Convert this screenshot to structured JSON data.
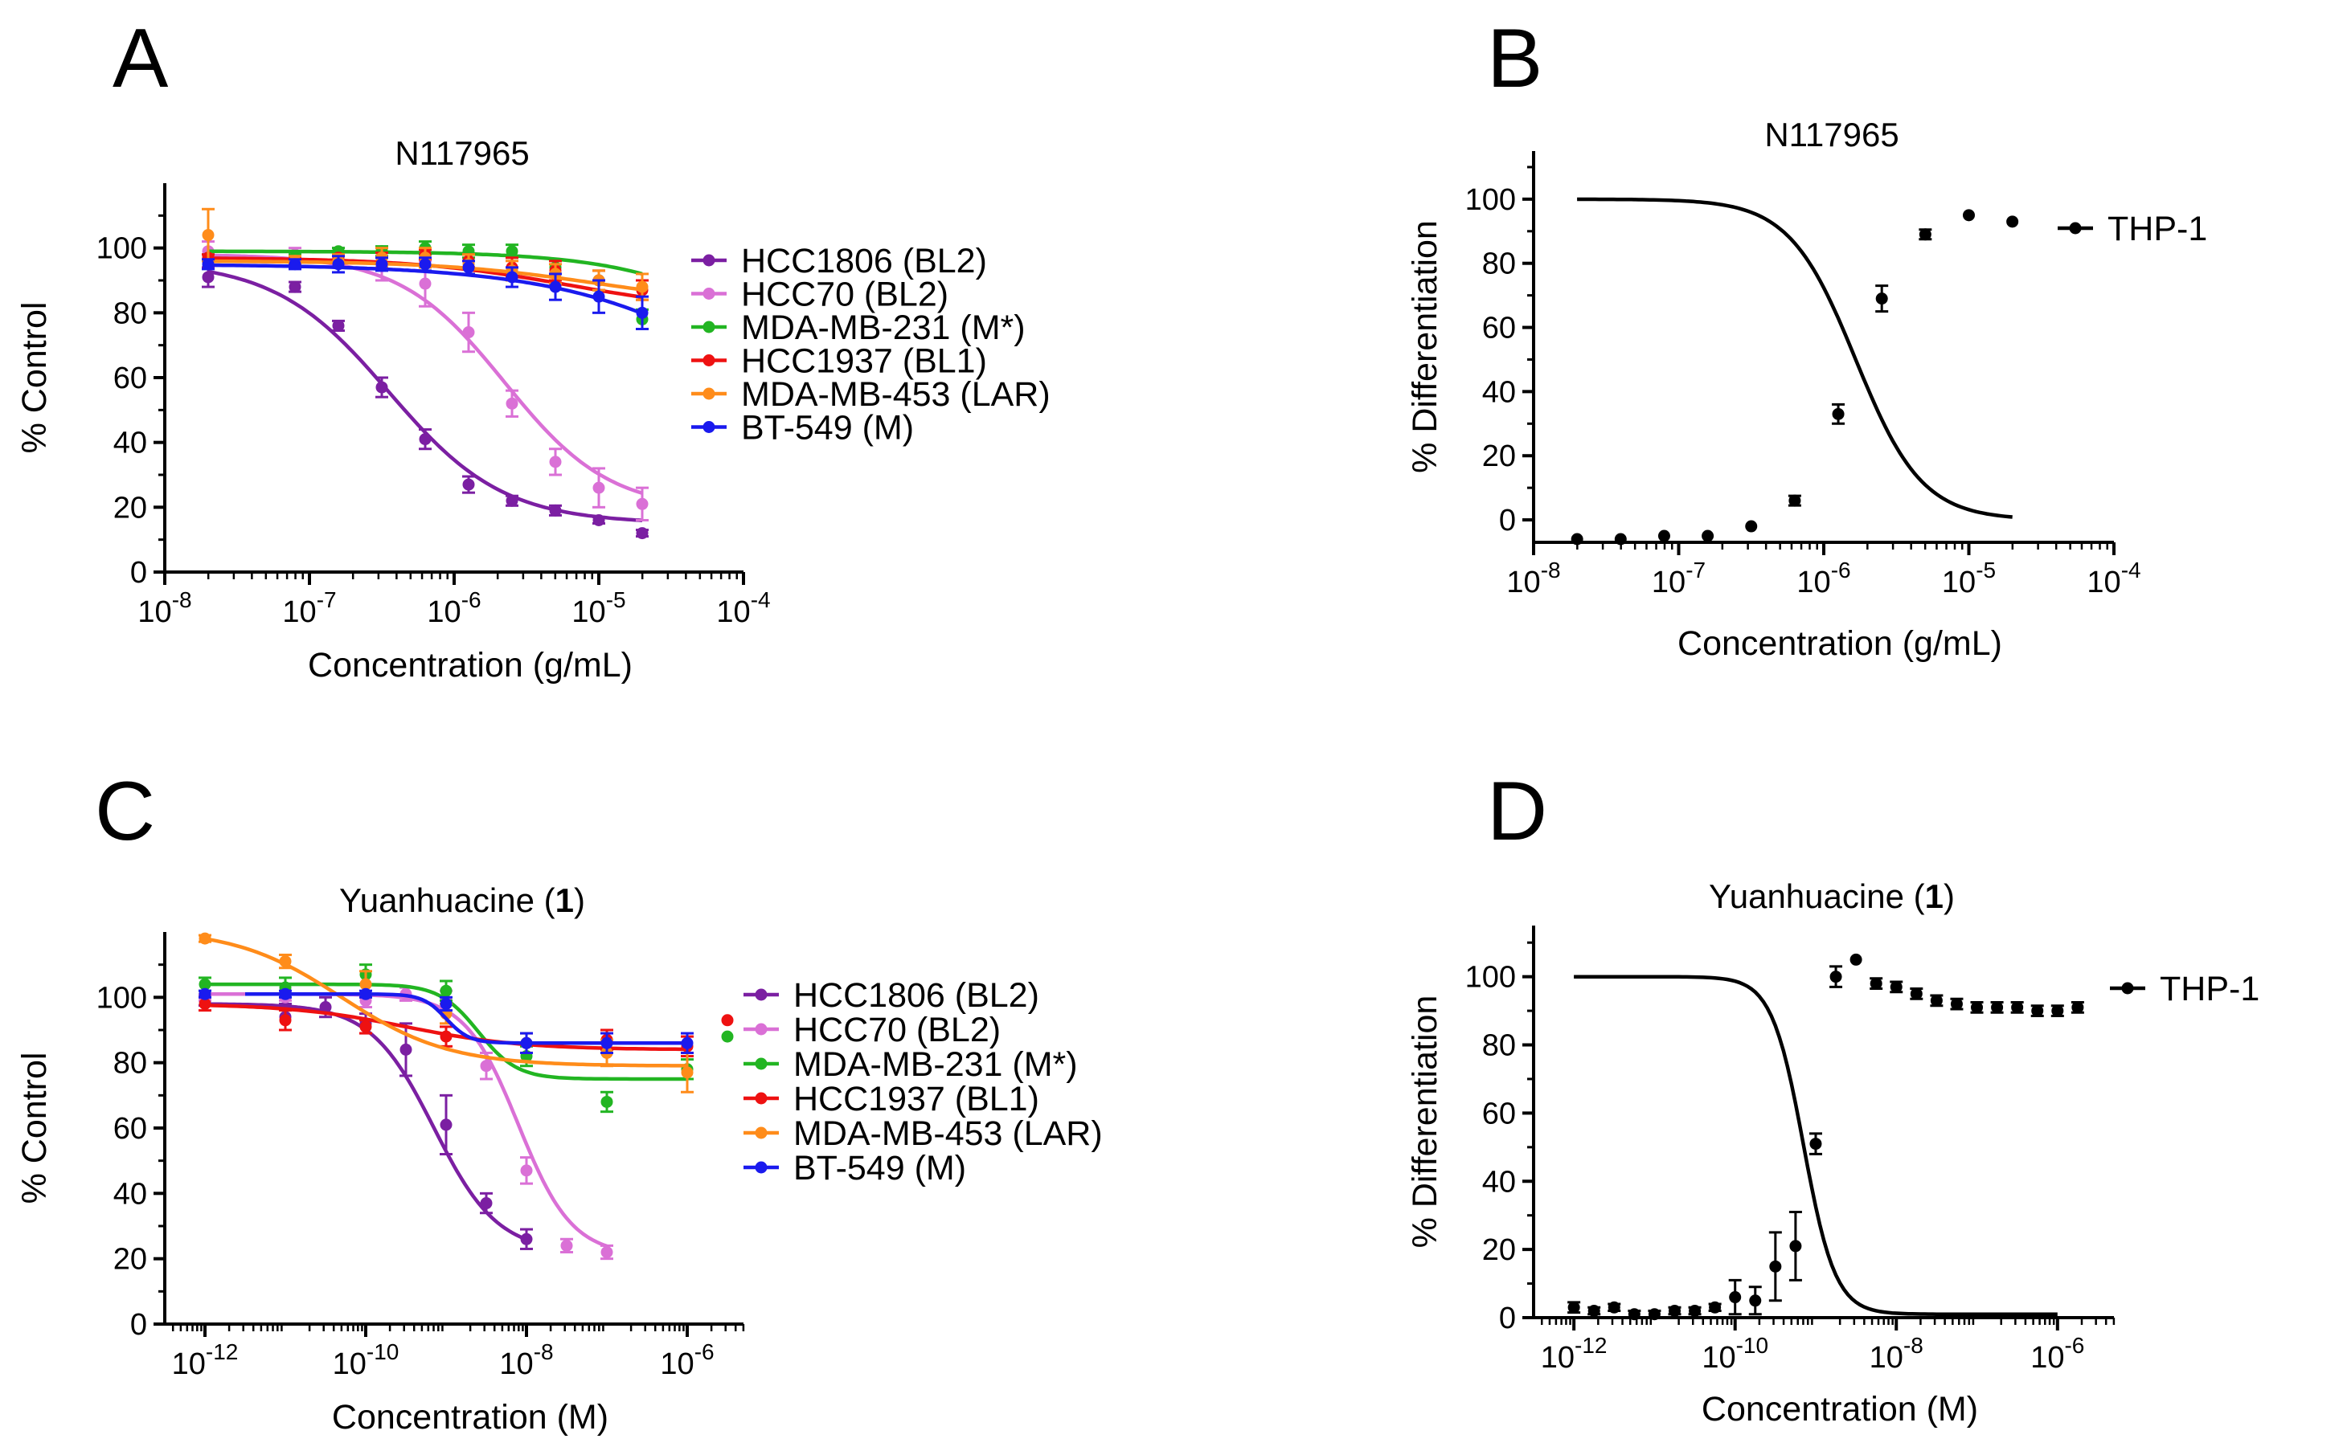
{
  "figure": {
    "colors": {
      "HCC1806 (BL2)": "#7B1FA2",
      "HCC70 (BL2)": "#DA70D6",
      "MDA-MB-231 (M*)": "#22B522",
      "HCC1937 (BL1)": "#EE1111",
      "MDA-MB-453 (LAR)": "#FF8C1A",
      "BT-549 (M)": "#1A1AEE",
      "THP-1": "#000000"
    }
  },
  "chart_data": [
    {
      "panel": "A",
      "type": "scatter",
      "title": "N117965",
      "xlabel": "Concentration (g/mL)",
      "ylabel": "% Control",
      "xscale": "log",
      "xlim_exp": [
        -8,
        -4
      ],
      "ylim": [
        0,
        120
      ],
      "xticks": [
        {
          "base": "10",
          "exp": "-8"
        },
        {
          "base": "10",
          "exp": "-7"
        },
        {
          "base": "10",
          "exp": "-6"
        },
        {
          "base": "10",
          "exp": "-5"
        },
        {
          "base": "10",
          "exp": "-4"
        }
      ],
      "yticks": [
        "0",
        "20",
        "40",
        "60",
        "80",
        "100"
      ],
      "ytick_values": [
        0,
        20,
        40,
        60,
        80,
        100
      ],
      "legend": "right",
      "series": [
        {
          "name": "HCC1806 (BL2)",
          "x_exp": [
            -7.7,
            -7.1,
            -6.8,
            -6.5,
            -6.2,
            -5.9,
            -5.6,
            -5.3,
            -5.0,
            -4.7
          ],
          "y": [
            91,
            88,
            76,
            57,
            41,
            27,
            22,
            19,
            16,
            12
          ],
          "err": [
            3,
            1.5,
            1.5,
            3,
            3,
            2.5,
            1.5,
            1.5,
            1,
            1
          ],
          "curve": {
            "top": 96,
            "bottom": 15,
            "logec50": -6.45,
            "hill": 1.1
          }
        },
        {
          "name": "HCC70 (BL2)",
          "x_exp": [
            -7.7,
            -7.1,
            -6.8,
            -6.5,
            -6.2,
            -5.9,
            -5.6,
            -5.3,
            -5.0,
            -4.7
          ],
          "y": [
            99,
            98,
            98,
            95,
            89,
            74,
            52,
            34,
            26,
            21
          ],
          "err": [
            3,
            2,
            2,
            5,
            7,
            6,
            4,
            4,
            6,
            5
          ],
          "curve": {
            "top": 98,
            "bottom": 19,
            "logec50": -5.65,
            "hill": 1.2
          }
        },
        {
          "name": "MDA-MB-231 (M*)",
          "x_exp": [
            -7.7,
            -7.1,
            -6.8,
            -6.5,
            -6.2,
            -5.9,
            -5.6,
            -5.3,
            -5.0,
            -4.7
          ],
          "y": [
            97,
            97,
            99,
            99,
            100,
            99,
            99,
            94,
            90,
            78
          ],
          "err": [
            1,
            1,
            1,
            1.5,
            2,
            2,
            2,
            2,
            3,
            3
          ],
          "curve": {
            "top": 99,
            "bottom": 0,
            "logec50": -3.3,
            "hill": 0.8
          }
        },
        {
          "name": "HCC1937 (BL1)",
          "x_exp": [
            -7.7,
            -7.1,
            -6.8,
            -6.5,
            -6.2,
            -5.9,
            -5.6,
            -5.3,
            -5.0,
            -4.7
          ],
          "y": [
            97,
            96,
            97,
            97,
            98,
            96,
            94,
            93,
            90,
            87
          ],
          "err": [
            1,
            1,
            1,
            1.5,
            1.5,
            2,
            3,
            3,
            3,
            3
          ],
          "curve": {
            "top": 97,
            "bottom": 80,
            "logec50": -5.2,
            "hill": 0.8
          }
        },
        {
          "name": "MDA-MB-453 (LAR)",
          "x_exp": [
            -7.7,
            -7.1,
            -6.8,
            -6.5,
            -6.2,
            -5.9,
            -5.6,
            -5.3,
            -5.0,
            -4.7
          ],
          "y": [
            104,
            96,
            96,
            97,
            97,
            95,
            93,
            92,
            90,
            88
          ],
          "err": [
            8,
            1.5,
            2,
            3,
            3,
            3,
            3,
            3,
            3,
            4
          ],
          "curve": {
            "top": 96,
            "bottom": 82,
            "logec50": -5.0,
            "hill": 0.8
          }
        },
        {
          "name": "BT-549 (M)",
          "x_exp": [
            -7.7,
            -7.1,
            -6.8,
            -6.5,
            -6.2,
            -5.9,
            -5.6,
            -5.3,
            -5.0,
            -4.7
          ],
          "y": [
            95,
            95,
            95,
            95,
            95,
            94,
            91,
            88,
            85,
            80
          ],
          "err": [
            1.5,
            1.5,
            2.5,
            2,
            2,
            2,
            3,
            4,
            5,
            5
          ],
          "curve": {
            "top": 95,
            "bottom": 0,
            "logec50": -3.5,
            "hill": 0.6
          }
        }
      ]
    },
    {
      "panel": "B",
      "type": "scatter",
      "title": "N117965",
      "xlabel": "Concentration (g/mL)",
      "ylabel": "% Differentiation",
      "xscale": "log",
      "xlim_exp": [
        -8,
        -4
      ],
      "ylim": [
        -7,
        115
      ],
      "xticks": [
        {
          "base": "10",
          "exp": "-8"
        },
        {
          "base": "10",
          "exp": "-7"
        },
        {
          "base": "10",
          "exp": "-6"
        },
        {
          "base": "10",
          "exp": "-5"
        },
        {
          "base": "10",
          "exp": "-4"
        }
      ],
      "yticks": [
        "0",
        "20",
        "40",
        "60",
        "80",
        "100"
      ],
      "ytick_values": [
        0,
        20,
        40,
        60,
        80,
        100
      ],
      "legend": "right",
      "series": [
        {
          "name": "THP-1",
          "x_exp": [
            -7.7,
            -7.4,
            -7.1,
            -6.8,
            -6.5,
            -6.2,
            -5.9,
            -5.6,
            -5.3,
            -5.0,
            -4.7
          ],
          "y": [
            -6,
            -6,
            -5,
            -5,
            -2,
            6,
            33,
            69,
            89,
            95,
            93
          ],
          "err": [
            0,
            0,
            0,
            0,
            0,
            1.5,
            3,
            4,
            1.5,
            0,
            0
          ],
          "curve": {
            "top": 100,
            "bottom": 0,
            "logec50": -5.78,
            "hill": 1.9
          }
        }
      ]
    },
    {
      "panel": "C",
      "type": "scatter",
      "title": "Yuanhuacine (1)",
      "title_text": "Yuanhuacine (",
      "title_bold": "1",
      "title_close": ")",
      "xlabel": "Concentration (M)",
      "ylabel": "% Control",
      "xscale": "log",
      "xlim_exp": [
        -12.5,
        -5.3
      ],
      "ylim": [
        0,
        120
      ],
      "xticks": [
        {
          "base": "10",
          "exp": "-12"
        },
        {
          "base": "10",
          "exp": "-10"
        },
        {
          "base": "10",
          "exp": "-8"
        },
        {
          "base": "10",
          "exp": "-6"
        }
      ],
      "yticks": [
        "0",
        "20",
        "40",
        "60",
        "80",
        "100"
      ],
      "ytick_values": [
        0,
        20,
        40,
        60,
        80,
        100
      ],
      "legend": "right",
      "series": [
        {
          "name": "HCC1806 (BL2)",
          "x_exp": [
            -12,
            -11,
            -10.5,
            -10,
            -9.5,
            -9,
            -8.5,
            -8
          ],
          "y": [
            99,
            94,
            97,
            92,
            84,
            61,
            37,
            26
          ],
          "err": [
            1.5,
            4,
            3,
            3,
            8,
            9,
            3,
            3
          ],
          "curve": {
            "top": 98,
            "bottom": 22,
            "logec50": -9.15,
            "hill": 1.1
          },
          "curve_x_exp": [
            -12,
            -8
          ]
        },
        {
          "name": "HCC70 (BL2)",
          "x_exp": [
            -12,
            -11,
            -10,
            -9.5,
            -9,
            -8.5,
            -8,
            -7.5,
            -7
          ],
          "y": [
            100,
            100,
            99,
            101,
            99,
            79,
            47,
            24,
            22
          ],
          "err": [
            1,
            1,
            2,
            2,
            3,
            4,
            4,
            2,
            2
          ],
          "curve": {
            "top": 101,
            "bottom": 21,
            "logec50": -8.1,
            "hill": 1.3
          },
          "curve_x_exp": [
            -12,
            -7
          ]
        },
        {
          "name": "MDA-MB-231 (M*)",
          "x_exp": [
            -12,
            -11,
            -10,
            -9,
            -8,
            -7,
            -6
          ],
          "y": [
            104,
            103,
            107,
            102,
            82,
            68,
            78
          ],
          "err": [
            2,
            3,
            3,
            3,
            3,
            3,
            3
          ],
          "curve": {
            "top": 104,
            "bottom": 75,
            "logec50": -8.6,
            "hill": 1.8
          },
          "curve_x_exp": [
            -12,
            -6
          ],
          "extra_points": [
            {
              "x_exp": -5.5,
              "y": 88
            }
          ]
        },
        {
          "name": "HCC1937 (BL1)",
          "x_exp": [
            -12,
            -11,
            -10,
            -9,
            -8,
            -7,
            -6
          ],
          "y": [
            98,
            93,
            91,
            88,
            86,
            87,
            85
          ],
          "err": [
            2,
            3,
            2,
            3,
            3,
            3,
            3
          ],
          "curve": {
            "top": 98,
            "bottom": 84,
            "logec50": -9.5,
            "hill": 0.6
          },
          "curve_x_exp": [
            -12,
            -6
          ],
          "extra_points": [
            {
              "x_exp": -5.5,
              "y": 93
            }
          ]
        },
        {
          "name": "MDA-MB-453 (LAR)",
          "x_exp": [
            -12,
            -11,
            -10,
            -9,
            -8,
            -7,
            -6
          ],
          "y": [
            118,
            111,
            104,
            95,
            86,
            83,
            77
          ],
          "err": [
            1,
            2,
            4,
            3,
            3,
            4,
            6
          ],
          "curve": {
            "top": 121,
            "bottom": 79,
            "logec50": -10.3,
            "hill": 0.65
          },
          "curve_x_exp": [
            -12,
            -6
          ]
        },
        {
          "name": "BT-549 (M)",
          "x_exp": [
            -12,
            -11,
            -10,
            -9,
            -8,
            -7,
            -6
          ],
          "y": [
            101,
            101,
            101,
            98,
            86,
            86,
            86
          ],
          "err": [
            1,
            1,
            1,
            2,
            3,
            3,
            3
          ],
          "curve": {
            "top": 101,
            "bottom": 86,
            "logec50": -9.0,
            "hill": 3
          },
          "curve_x_exp": [
            -11.5,
            -6
          ]
        }
      ]
    },
    {
      "panel": "D",
      "type": "scatter",
      "title": "Yuanhuacine (1)",
      "title_text": "Yuanhuacine (",
      "title_bold": "1",
      "title_close": ")",
      "xlabel": "Concentration (M)",
      "ylabel": "% Differentiation",
      "xscale": "log",
      "xlim_exp": [
        -12.5,
        -5.3
      ],
      "ylim": [
        0,
        115
      ],
      "xticks": [
        {
          "base": "10",
          "exp": "-12"
        },
        {
          "base": "10",
          "exp": "-10"
        },
        {
          "base": "10",
          "exp": "-8"
        },
        {
          "base": "10",
          "exp": "-6"
        }
      ],
      "yticks": [
        "0",
        "20",
        "40",
        "60",
        "80",
        "100"
      ],
      "ytick_values": [
        0,
        20,
        40,
        60,
        80,
        100
      ],
      "legend": "right",
      "series": [
        {
          "name": "THP-1",
          "x_exp": [
            -12,
            -11.75,
            -11.5,
            -11.25,
            -11,
            -10.75,
            -10.5,
            -10.25,
            -10,
            -9.75,
            -9.5,
            -9.25,
            -9,
            -8.75,
            -8.5,
            -8.25,
            -8,
            -7.75,
            -7.5,
            -7.25,
            -7,
            -6.75,
            -6.5,
            -6.25,
            -6,
            -5.75
          ],
          "y": [
            3,
            2,
            3,
            1,
            1,
            2,
            2,
            3,
            6,
            5,
            15,
            21,
            51,
            100,
            105,
            98,
            97,
            95,
            93,
            92,
            91,
            91,
            91,
            90,
            90,
            91
          ],
          "err": [
            1.5,
            1,
            1,
            1,
            1,
            1,
            1,
            1,
            5,
            4,
            10,
            10,
            3,
            3,
            0,
            1.5,
            1.5,
            1.5,
            1.5,
            1.5,
            1.5,
            1.5,
            1.5,
            1.5,
            1.5,
            1.5
          ],
          "curve": {
            "top": 100,
            "bottom": 1,
            "logec50": -9.15,
            "hill": 2.2
          },
          "curve_x_exp": [
            -12,
            -6
          ]
        }
      ]
    }
  ]
}
